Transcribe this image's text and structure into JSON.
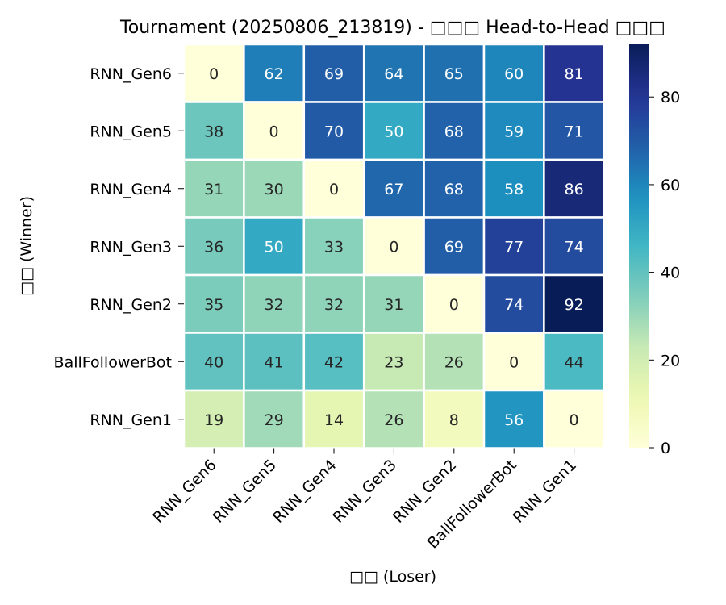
{
  "chart_data": {
    "type": "heatmap",
    "title": "Tournament (20250806_213819) - □□□ Head-to-Head □□□",
    "xlabel": "□□ (Loser)",
    "ylabel": "□□ (Winner)",
    "rows": [
      "RNN_Gen6",
      "RNN_Gen5",
      "RNN_Gen4",
      "RNN_Gen3",
      "RNN_Gen2",
      "BallFollowerBot",
      "RNN_Gen1"
    ],
    "columns": [
      "RNN_Gen6",
      "RNN_Gen5",
      "RNN_Gen4",
      "RNN_Gen3",
      "RNN_Gen2",
      "BallFollowerBot",
      "RNN_Gen1"
    ],
    "values": [
      [
        0,
        62,
        69,
        64,
        65,
        60,
        81
      ],
      [
        38,
        0,
        70,
        50,
        68,
        59,
        71
      ],
      [
        31,
        30,
        0,
        67,
        68,
        58,
        86
      ],
      [
        36,
        50,
        33,
        0,
        69,
        77,
        74
      ],
      [
        35,
        32,
        32,
        31,
        0,
        74,
        92
      ],
      [
        40,
        41,
        42,
        23,
        26,
        0,
        44
      ],
      [
        19,
        29,
        14,
        26,
        8,
        56,
        0
      ]
    ],
    "colorbar": {
      "colormap": "YlGnBu",
      "range": [
        0,
        92
      ],
      "ticks": [
        0,
        20,
        40,
        60,
        80
      ]
    },
    "annotations": "cell values shown"
  }
}
